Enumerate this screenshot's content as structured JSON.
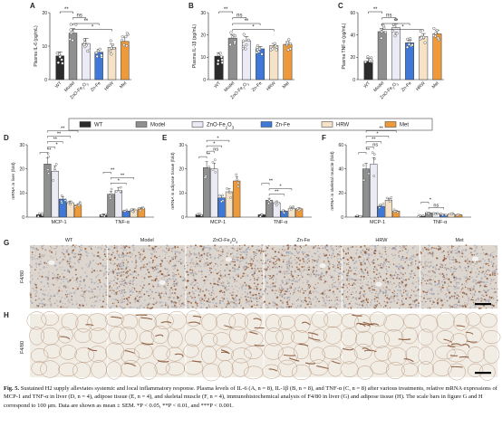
{
  "colors": {
    "WT": "#2b2b2b",
    "Model": "#8f8f8f",
    "ZnO-Fe2O3": "#ebebf6",
    "Zn-Fe": "#3f78d6",
    "HRW": "#f6e2c7",
    "Met": "#ee9a3a",
    "edge": "#333333",
    "dot": "#ffffff"
  },
  "legend": [
    {
      "key": "WT",
      "label": "WT"
    },
    {
      "key": "Model",
      "label": "Model"
    },
    {
      "key": "ZnO-Fe2O3",
      "label": "ZnO-Fe2O3"
    },
    {
      "key": "Zn-Fe",
      "label": "Zn-Fe"
    },
    {
      "key": "HRW",
      "label": "HRW"
    },
    {
      "key": "Met",
      "label": "Met"
    }
  ],
  "groups": [
    "WT",
    "Model",
    "ZnO-Fe2O3",
    "Zn-Fe",
    "HRW",
    "Met"
  ],
  "chart_data": [
    {
      "panel": "A",
      "type": "bar",
      "ylabel": "Plasma IL-6 (pg/mL)",
      "ylim": [
        0,
        20
      ],
      "yticks": [
        0,
        10,
        20
      ],
      "categories": [
        "WT",
        "Model",
        "ZnO-Fe2O3",
        "Zn-Fe",
        "HRW",
        "Met"
      ],
      "values": [
        7.1,
        13.9,
        10.8,
        8.2,
        9.6,
        11.4
      ],
      "errors": [
        1.2,
        1.3,
        1.5,
        0.8,
        1.0,
        1.3
      ],
      "sig": [
        {
          "from": 0,
          "to": 1,
          "label": "**"
        },
        {
          "from": 1,
          "to": 2,
          "label": "ns"
        },
        {
          "from": 1,
          "to": 3,
          "label": "**"
        },
        {
          "from": 1,
          "to": 4,
          "label": "*"
        }
      ]
    },
    {
      "panel": "B",
      "type": "bar",
      "ylabel": "Plasma IL-1β (pg/mL)",
      "ylim": [
        0,
        30
      ],
      "yticks": [
        0,
        10,
        20,
        30
      ],
      "categories": [
        "WT",
        "Model",
        "ZnO-Fe2O3",
        "Zn-Fe",
        "HRW",
        "Met"
      ],
      "values": [
        10.5,
        18.6,
        17.4,
        13.8,
        15.2,
        15.8
      ],
      "errors": [
        1.6,
        1.4,
        1.9,
        1.1,
        1.0,
        1.2
      ],
      "sig": [
        {
          "from": 0,
          "to": 1,
          "label": "**"
        },
        {
          "from": 1,
          "to": 2,
          "label": "ns"
        },
        {
          "from": 1,
          "to": 3,
          "label": "**"
        },
        {
          "from": 1,
          "to": 4,
          "label": "*"
        }
      ]
    },
    {
      "panel": "C",
      "type": "bar",
      "ylabel": "Plasma TNF-α (pg/mL)",
      "ylim": [
        0,
        60
      ],
      "yticks": [
        0,
        20,
        40,
        60
      ],
      "categories": [
        "WT",
        "Model",
        "ZnO-Fe2O3",
        "Zn-Fe",
        "HRW",
        "Met"
      ],
      "values": [
        16.5,
        43.0,
        46.5,
        33.0,
        38.5,
        41.0
      ],
      "errors": [
        2.4,
        3.0,
        3.6,
        2.2,
        2.8,
        3.1
      ],
      "sig": [
        {
          "from": 0,
          "to": 1,
          "label": "**"
        },
        {
          "from": 1,
          "to": 2,
          "label": "ns"
        },
        {
          "from": 1,
          "to": 3,
          "label": "**"
        },
        {
          "from": 1,
          "to": 4,
          "label": "*"
        }
      ]
    },
    {
      "panel": "D",
      "type": "bar",
      "ylabel": "mRNA in liver (fold)",
      "ylim": [
        0,
        30
      ],
      "yticks": [
        0,
        10,
        20,
        30
      ],
      "categories": [
        "MCP-1",
        "TNF-α"
      ],
      "series": [
        {
          "name": "WT",
          "values": [
            1.0,
            1.0
          ]
        },
        {
          "name": "Model",
          "values": [
            22.0,
            9.5
          ]
        },
        {
          "name": "ZnO-Fe2O3",
          "values": [
            19.0,
            11.0
          ]
        },
        {
          "name": "Zn-Fe",
          "values": [
            7.5,
            2.5
          ]
        },
        {
          "name": "HRW",
          "values": [
            6.0,
            3.0
          ]
        },
        {
          "name": "Met",
          "values": [
            5.0,
            3.5
          ]
        }
      ],
      "sig": [
        {
          "cat": 0,
          "from": 0,
          "to": 1,
          "label": "**"
        },
        {
          "cat": 0,
          "from": 1,
          "to": 2,
          "label": "*"
        },
        {
          "cat": 0,
          "from": 1,
          "to": 3,
          "label": "**"
        },
        {
          "cat": 0,
          "from": 1,
          "to": 4,
          "label": "**"
        },
        {
          "cat": 0,
          "from": 1,
          "to": 5,
          "label": "**"
        },
        {
          "cat": 1,
          "from": 1,
          "to": 3,
          "label": "*"
        },
        {
          "cat": 1,
          "from": 1,
          "to": 4,
          "label": "**"
        },
        {
          "cat": 1,
          "from": 0,
          "to": 1,
          "label": "**"
        }
      ]
    },
    {
      "panel": "E",
      "type": "bar",
      "ylabel": "mRNA in adipose tissue (fold)",
      "ylim": [
        0,
        30
      ],
      "yticks": [
        0,
        10,
        20,
        30
      ],
      "categories": [
        "MCP-1",
        "TNF-α"
      ],
      "series": [
        {
          "name": "WT",
          "values": [
            1.0,
            1.0
          ]
        },
        {
          "name": "Model",
          "values": [
            20.5,
            7.0
          ]
        },
        {
          "name": "ZnO-Fe2O3",
          "values": [
            20.0,
            6.0
          ]
        },
        {
          "name": "Zn-Fe",
          "values": [
            8.0,
            2.5
          ]
        },
        {
          "name": "HRW",
          "values": [
            10.5,
            3.5
          ]
        },
        {
          "name": "Met",
          "values": [
            15.0,
            3.5
          ]
        }
      ],
      "sig": [
        {
          "cat": 0,
          "from": 0,
          "to": 1,
          "label": "**"
        },
        {
          "cat": 0,
          "from": 1,
          "to": 2,
          "label": "ns"
        },
        {
          "cat": 0,
          "from": 1,
          "to": 3,
          "label": "*"
        },
        {
          "cat": 0,
          "from": 1,
          "to": 4,
          "label": "*"
        },
        {
          "cat": 1,
          "from": 1,
          "to": 3,
          "label": "**"
        },
        {
          "cat": 1,
          "from": 1,
          "to": 4,
          "label": "*"
        },
        {
          "cat": 1,
          "from": 0,
          "to": 1,
          "label": "**"
        }
      ]
    },
    {
      "panel": "F",
      "type": "bar",
      "ylabel": "mRNA in skeletal muscle (fold)",
      "ylim": [
        0,
        60
      ],
      "yticks": [
        0,
        20,
        40,
        60
      ],
      "categories": [
        "MCP-1",
        "TNF-α"
      ],
      "series": [
        {
          "name": "WT",
          "values": [
            1.0,
            1.0
          ]
        },
        {
          "name": "Model",
          "values": [
            40.0,
            3.5
          ]
        },
        {
          "name": "ZnO-Fe2O3",
          "values": [
            44.0,
            3.0
          ]
        },
        {
          "name": "Zn-Fe",
          "values": [
            9.0,
            2.0
          ]
        },
        {
          "name": "HRW",
          "values": [
            14.0,
            2.5
          ]
        },
        {
          "name": "Met",
          "values": [
            5.0,
            2.0
          ]
        }
      ],
      "sig": [
        {
          "cat": 0,
          "from": 0,
          "to": 1,
          "label": "**"
        },
        {
          "cat": 0,
          "from": 1,
          "to": 2,
          "label": "ns"
        },
        {
          "cat": 0,
          "from": 1,
          "to": 3,
          "label": "**"
        },
        {
          "cat": 0,
          "from": 1,
          "to": 4,
          "label": "*"
        },
        {
          "cat": 0,
          "from": 1,
          "to": 5,
          "label": "**"
        },
        {
          "cat": 1,
          "from": 1,
          "to": 3,
          "label": "ns"
        },
        {
          "cat": 1,
          "from": 0,
          "to": 1,
          "label": "*"
        }
      ]
    }
  ],
  "histology": {
    "G": {
      "label": "G",
      "row_label": "F4/80",
      "type": "liver"
    },
    "H": {
      "label": "H",
      "row_label": "F4/80",
      "type": "adipose"
    },
    "columns": [
      "WT",
      "Model",
      "ZnO-Fe2O3",
      "Zn-Fe",
      "HRW",
      "Met"
    ]
  },
  "caption": {
    "title": "Fig. 5.",
    "text": "Sustained H2 supply alleviates systemic and local inflammatory response. Plasma levels of IL-6 (A, n = 8), IL-1β (B, n = 8), and TNF-α (C, n = 8) after various treatments, relative mRNA expressions of MCP-1 and TNF-α in liver (D, n = 4), adipose tissue (E, n = 4), and skeletal muscle (F, n = 4), immunohistochemical analysis of F4/80 in liver (G) and adipose tissue (H). The scale bars in figure G and H correspond to 100 μm. Data are shown as mean ± SEM. *P < 0.05, **P < 0.01, and ***P < 0.001."
  }
}
